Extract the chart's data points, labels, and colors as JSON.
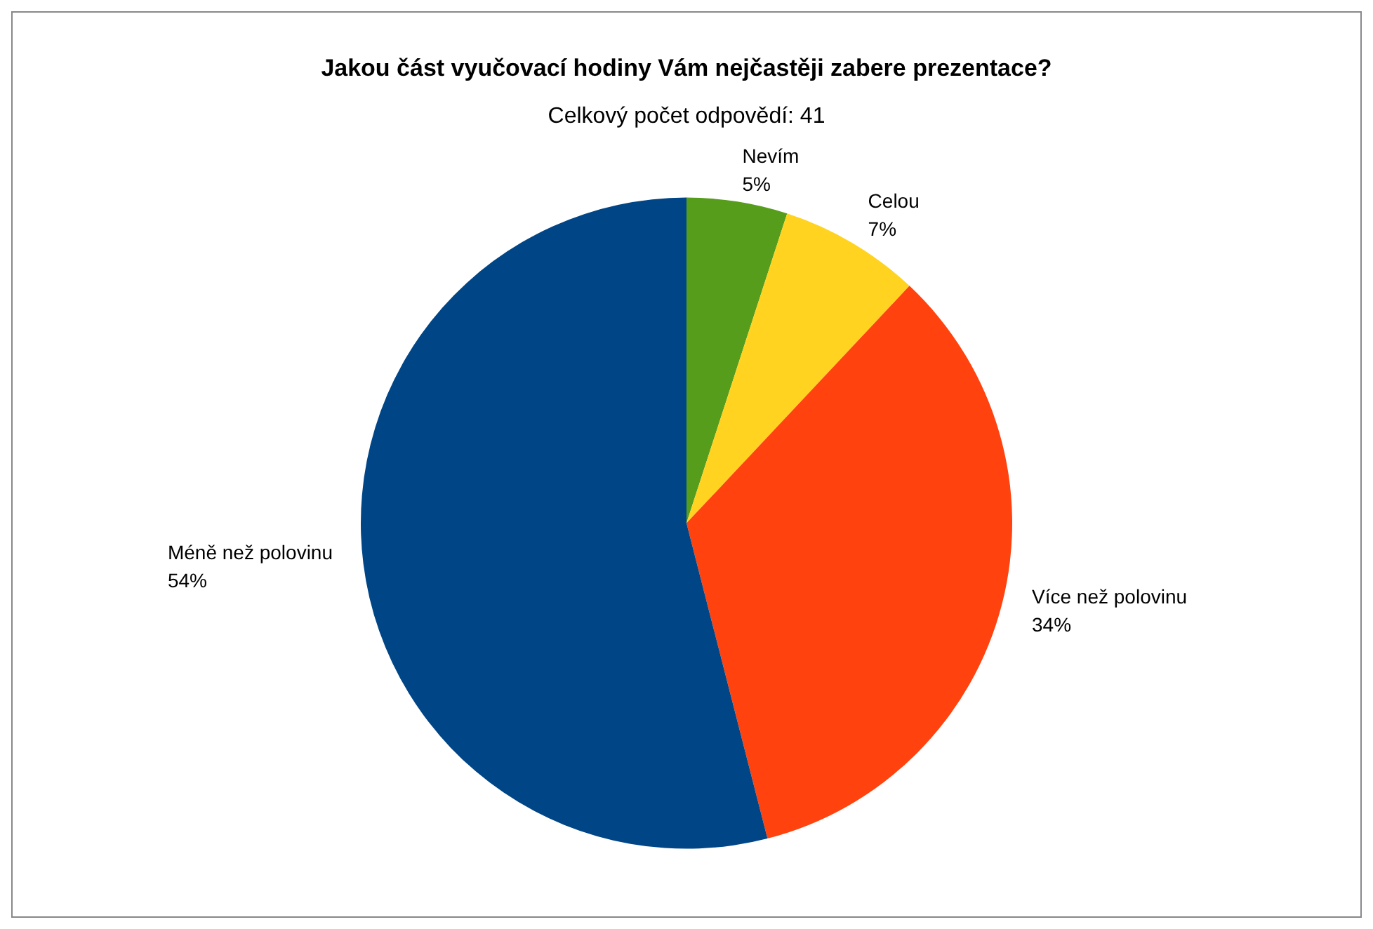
{
  "chart_data": {
    "type": "pie",
    "title": "Jakou část vyučovací hodiny Vám nejčastěji zabere prezentace?",
    "subtitle": "Celkový počet odpovědí: 41",
    "categories": [
      "Nevím",
      "Celou",
      "Více než polovinu",
      "Méně než polovinu"
    ],
    "values": [
      5,
      7,
      34,
      54
    ],
    "colors": [
      "#579d1c",
      "#ffd320",
      "#ff420e",
      "#004586"
    ],
    "value_labels": [
      "5%",
      "7%",
      "34%",
      "54%"
    ],
    "legend": false
  }
}
